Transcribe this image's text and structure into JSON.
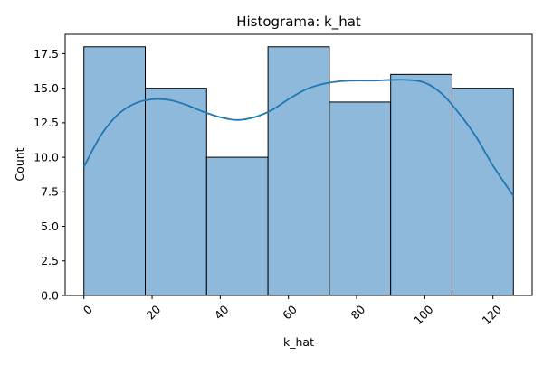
{
  "chart_data": {
    "type": "bar",
    "title": "Histograma: k_hat",
    "xlabel": "k_hat",
    "ylabel": "Count",
    "bins": [
      {
        "x0": 0,
        "x1": 18,
        "count": 18
      },
      {
        "x0": 18,
        "x1": 36,
        "count": 15
      },
      {
        "x0": 36,
        "x1": 54,
        "count": 10
      },
      {
        "x0": 54,
        "x1": 72,
        "count": 18
      },
      {
        "x0": 72,
        "x1": 90,
        "count": 14
      },
      {
        "x0": 90,
        "x1": 108,
        "count": 16
      },
      {
        "x0": 108,
        "x1": 126,
        "count": 15
      }
    ],
    "kde": {
      "name": "",
      "x": [
        0,
        5,
        10,
        15,
        20,
        25,
        30,
        35,
        40,
        45,
        50,
        55,
        60,
        65,
        70,
        75,
        80,
        85,
        90,
        95,
        100,
        105,
        110,
        115,
        120,
        126
      ],
      "y": [
        9.3,
        11.6,
        13.1,
        13.9,
        14.2,
        14.15,
        13.8,
        13.3,
        12.9,
        12.7,
        12.9,
        13.4,
        14.2,
        14.9,
        15.3,
        15.5,
        15.55,
        15.55,
        15.6,
        15.6,
        15.4,
        14.6,
        13.2,
        11.5,
        9.4,
        7.2
      ]
    },
    "xlim": [
      -5.5,
      131.5
    ],
    "ylim": [
      0,
      18.9
    ],
    "xticks": [
      0,
      20,
      40,
      60,
      80,
      100,
      120
    ],
    "xtick_labels": [
      "0",
      "20",
      "40",
      "60",
      "80",
      "100",
      "120"
    ],
    "yticks": [
      0,
      2.5,
      5,
      7.5,
      10,
      12.5,
      15,
      17.5
    ],
    "ytick_labels": [
      "0.0",
      "2.5",
      "5.0",
      "7.5",
      "10.0",
      "12.5",
      "15.0",
      "17.5"
    ],
    "grid": false,
    "legend": "none",
    "bar_color": "#8fb9db",
    "bar_edge_color": "#000000",
    "line_color": "#1f77b4"
  }
}
